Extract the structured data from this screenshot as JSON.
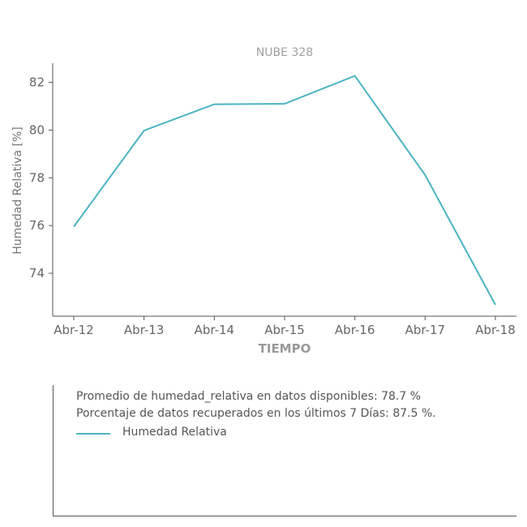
{
  "chart_data": {
    "type": "line",
    "title": "NUBE 328",
    "xlabel": "TIEMPO",
    "ylabel": "Humedad Relativa [%]",
    "categories": [
      "Abr-12",
      "Abr-13",
      "Abr-14",
      "Abr-15",
      "Abr-16",
      "Abr-17",
      "Abr-18"
    ],
    "series": [
      {
        "name": "Humedad Relativa",
        "color": "#4bb3c2",
        "values": [
          75.95,
          79.98,
          81.08,
          81.1,
          82.27,
          78.12,
          72.68
        ]
      }
    ],
    "yticks": [
      74,
      76,
      78,
      80,
      82
    ],
    "ylim": [
      72.2,
      82.8
    ],
    "grid": false
  },
  "info": {
    "line1": "Promedio de humedad_relativa en datos disponibles: 78.7 %",
    "line2": "Porcentaje de datos recuperados en los últimos 7 Días: 87.5 %.",
    "legend_label": "Humedad Relativa"
  }
}
